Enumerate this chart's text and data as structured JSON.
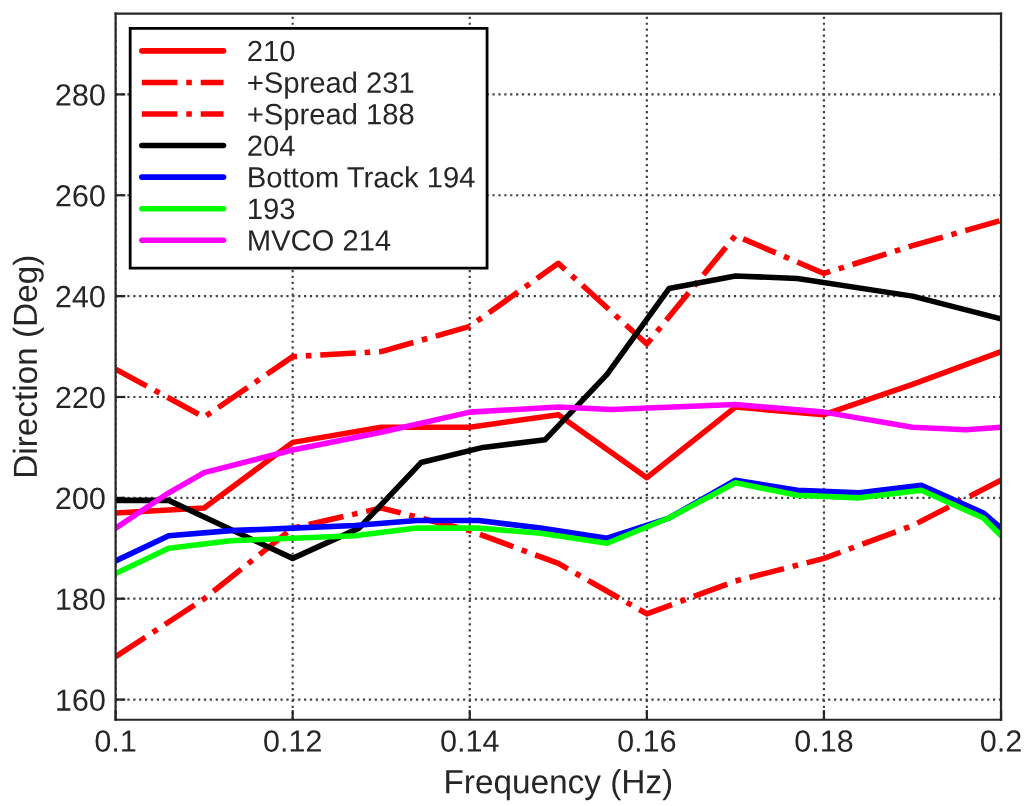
{
  "chart_data": {
    "type": "line",
    "xlabel": "Frequency (Hz)",
    "ylabel": "Direction (Deg)",
    "xlim": [
      0.1,
      0.2
    ],
    "xticks": [
      {
        "value": 0.1,
        "label": "0.1"
      },
      0.12,
      0.14,
      0.16,
      0.18,
      {
        "value": 0.2,
        "label": "0.2"
      }
    ],
    "ylim": [
      156,
      296
    ],
    "yticks": [
      160,
      180,
      200,
      220,
      240,
      260,
      280
    ],
    "grid": true,
    "legend": "top left",
    "series": [
      {
        "name": "210",
        "color": "#ff0000",
        "line_style": "solid",
        "x": [
          0.1,
          0.11,
          0.12,
          0.13,
          0.14,
          0.15,
          0.16,
          0.17,
          0.18,
          0.19,
          0.2
        ],
        "values": [
          197,
          198,
          211,
          214,
          214,
          216.5,
          204,
          218,
          216.5,
          222.5,
          229
        ]
      },
      {
        "name": "+Spread 231",
        "color": "#ff0000",
        "line_style": "dashdot",
        "x": [
          0.1,
          0.11,
          0.12,
          0.13,
          0.14,
          0.15,
          0.16,
          0.17,
          0.18,
          0.19,
          0.2
        ],
        "values": [
          225.5,
          216,
          228,
          229,
          234,
          246.5,
          230.5,
          252,
          244.5,
          250,
          255
        ]
      },
      {
        "name": "+Spread 188",
        "color": "#ff0000",
        "line_style": "dashdot",
        "x": [
          0.1,
          0.11,
          0.12,
          0.13,
          0.14,
          0.15,
          0.16,
          0.17,
          0.18,
          0.19,
          0.2
        ],
        "values": [
          168.5,
          180,
          194,
          198,
          193.5,
          187,
          177,
          183.5,
          188,
          194.5,
          203.5
        ]
      },
      {
        "name": "204",
        "color": "#000000",
        "line_style": "solid",
        "x": [
          0.1,
          0.106,
          0.12,
          0.1275,
          0.1345,
          0.1415,
          0.1485,
          0.1555,
          0.1625,
          0.17,
          0.177,
          0.19,
          0.2
        ],
        "values": [
          199.5,
          199.5,
          188,
          194,
          207,
          210,
          211.5,
          224.5,
          241.5,
          244,
          243.5,
          240,
          235.5
        ]
      },
      {
        "name": "Bottom Track 194",
        "color": "#0000ff",
        "line_style": "solid",
        "x": [
          0.1,
          0.106,
          0.113,
          0.12,
          0.127,
          0.134,
          0.141,
          0.148,
          0.1555,
          0.1625,
          0.17,
          0.177,
          0.184,
          0.191,
          0.198,
          0.2
        ],
        "values": [
          187.5,
          192.5,
          193.5,
          194,
          194.5,
          195.5,
          195.5,
          194,
          192,
          196,
          203.5,
          201.5,
          201,
          202.5,
          197,
          194
        ]
      },
      {
        "name": "193",
        "color": "#00ff00",
        "line_style": "solid",
        "x": [
          0.1,
          0.106,
          0.113,
          0.12,
          0.127,
          0.134,
          0.141,
          0.148,
          0.1555,
          0.1625,
          0.17,
          0.177,
          0.184,
          0.191,
          0.198,
          0.2
        ],
        "values": [
          185,
          190,
          191.5,
          192,
          192.5,
          194,
          194,
          193,
          191,
          196,
          203,
          200.5,
          200,
          201.5,
          196,
          192.5
        ]
      },
      {
        "name": "MVCO 214",
        "color": "#ff00ff",
        "line_style": "solid",
        "x": [
          0.1,
          0.106,
          0.11,
          0.12,
          0.13,
          0.14,
          0.15,
          0.156,
          0.17,
          0.18,
          0.19,
          0.196,
          0.2
        ],
        "values": [
          194,
          201,
          205,
          209.5,
          213,
          217,
          218,
          217.5,
          218.5,
          217,
          214,
          213.5,
          214
        ]
      }
    ]
  }
}
